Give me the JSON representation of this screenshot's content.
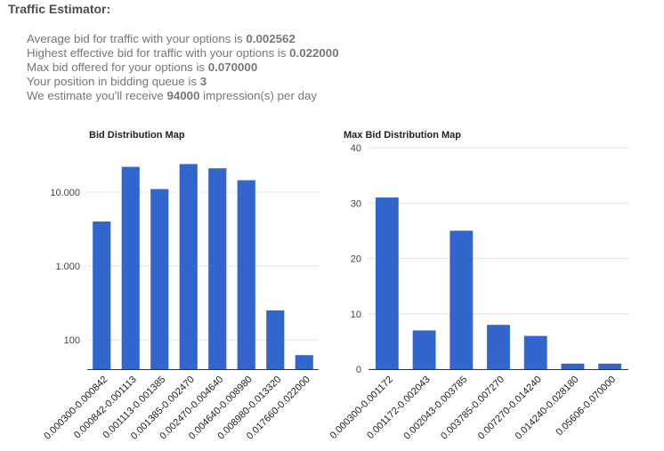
{
  "page": {
    "title": "Traffic Estimator:",
    "lines": [
      {
        "prefix": "Average bid for traffic with your options is ",
        "value": "0.002562",
        "suffix": ""
      },
      {
        "prefix": "Highest effective bid for traffic with your options is ",
        "value": "0.022000",
        "suffix": ""
      },
      {
        "prefix": "Max bid offered for your options is ",
        "value": "0.070000",
        "suffix": ""
      },
      {
        "prefix": "Your position in bidding queue is ",
        "value": "3",
        "suffix": ""
      },
      {
        "prefix": "We estimate you'll receive ",
        "value": "94000",
        "suffix": " impression(s) per day"
      }
    ]
  },
  "colors": {
    "bar": "#3366cc",
    "grid": "#e3e3e3",
    "axis": "#333333"
  },
  "chart_data": [
    {
      "type": "bar",
      "title": "Bid Distribution Map",
      "yscale": "log",
      "ylim": [
        40,
        40000
      ],
      "yticks": [
        100,
        1000,
        10000
      ],
      "ytick_labels": [
        "100",
        "1.000",
        "10.000"
      ],
      "grid": true,
      "categories": [
        "0.000300-0.000842",
        "0.000842-0.001113",
        "0.001113-0.001385",
        "0.001385-0.002470",
        "0.002470-0.004640",
        "0.004640-0.008980",
        "0.008980-0.013320",
        "0.017660-0.022000"
      ],
      "values": [
        4000,
        22000,
        11000,
        24000,
        21000,
        14500,
        250,
        62
      ]
    },
    {
      "type": "bar",
      "title": "Max Bid Distribution Map",
      "yscale": "linear",
      "ylim": [
        0,
        40
      ],
      "yticks": [
        0,
        10,
        20,
        30,
        40
      ],
      "ytick_labels": [
        "0",
        "10",
        "20",
        "30",
        "40"
      ],
      "grid": true,
      "categories": [
        "0.000300-0.001172",
        "0.001172-0.002043",
        "0.002043-0.003785",
        "0.003785-0.007270",
        "0.007270-0.014240",
        "0.014240-0.028180",
        "0.05606-0.070000"
      ],
      "values": [
        31,
        7,
        25,
        8,
        6,
        1,
        1
      ]
    }
  ]
}
